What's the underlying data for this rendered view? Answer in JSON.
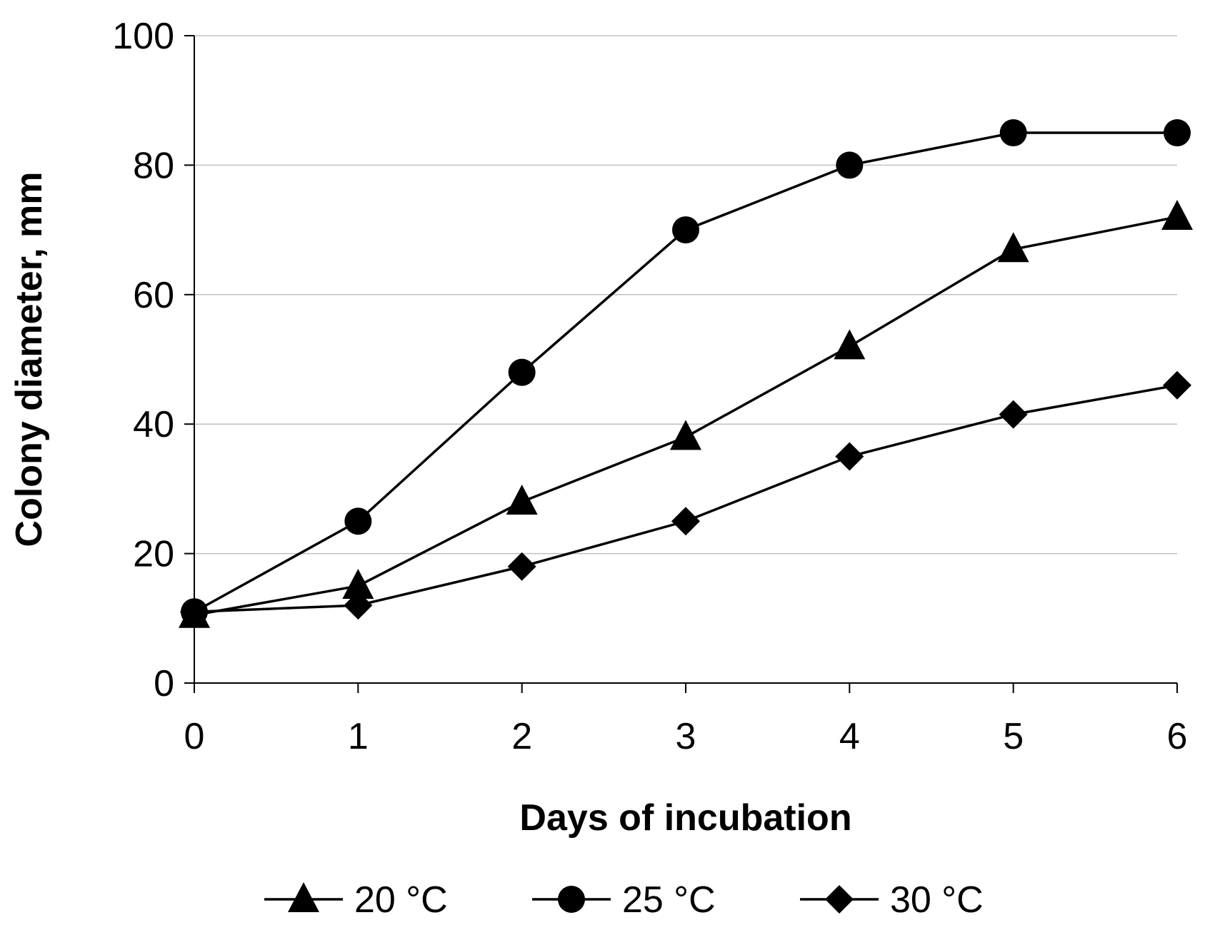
{
  "chart_data": {
    "type": "line",
    "title": "",
    "xlabel": "Days of incubation",
    "ylabel": "Colony diameter, mm",
    "x": [
      0,
      1,
      2,
      3,
      4,
      5,
      6
    ],
    "xlim": [
      0,
      6
    ],
    "ylim": [
      0,
      100
    ],
    "xticks": [
      "0",
      "1",
      "2",
      "3",
      "4",
      "5",
      "6"
    ],
    "yticks": [
      "0",
      "20",
      "40",
      "60",
      "80",
      "100"
    ],
    "grid": "horizontal",
    "legend_position": "bottom",
    "series": [
      {
        "name": "20 °C",
        "marker": "triangle",
        "values": [
          10.5,
          15,
          28,
          38,
          52,
          67,
          72
        ]
      },
      {
        "name": "25 °C",
        "marker": "circle",
        "values": [
          11,
          25,
          48,
          70,
          80,
          85,
          85
        ]
      },
      {
        "name": "30 °C",
        "marker": "diamond",
        "values": [
          11,
          12,
          18,
          25,
          35,
          41.5,
          46
        ]
      }
    ],
    "colors": {
      "line": "#000000",
      "grid": "#c0c0c0",
      "background": "#ffffff"
    }
  }
}
